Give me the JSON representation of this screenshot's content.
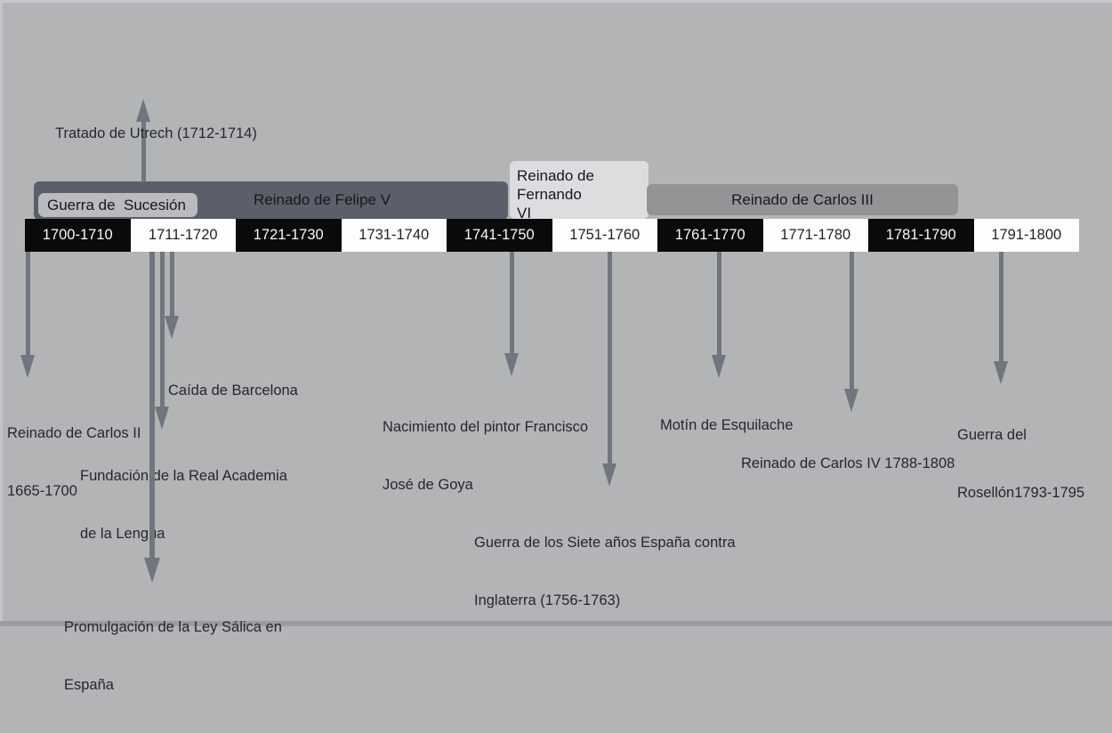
{
  "canvas": {
    "background": "#b3b4b6",
    "top_edge_color": "#c7c9cc",
    "bottom_edge_color": "#9b9ca0",
    "left_edge_color": "#c2c4c7",
    "text_color": "#26272b",
    "arrow_color": "#71757d"
  },
  "reigns": {
    "felipe_v": {
      "label": "Reinado de Felipe V",
      "color": "#5a5f6a"
    },
    "guerra_sucesion": {
      "label": "Guerra de  Sucesión",
      "color": "#babbbe"
    },
    "fernando_vi": {
      "lines": [
        "Reinado de Fernando",
        "VI"
      ],
      "color": "#dcdddf"
    },
    "carlos_iii": {
      "label": "Reinado de Carlos III",
      "color": "#949496"
    }
  },
  "timeline": {
    "decades": [
      "1700-1710",
      "1711-1720",
      "1721-1730",
      "1731-1740",
      "1741-1750",
      "1751-1760",
      "1761-1770",
      "1771-1780",
      "1781-1790",
      "1791-1800"
    ],
    "dark_cell_color": "#0a0a0b",
    "light_cell_color": "#fdfdfd"
  },
  "events": [
    {
      "id": "tratado-utrech",
      "direction": "up",
      "lines": [
        "Tratado de Utrech (1712-1714)"
      ]
    },
    {
      "id": "reinado-carlos-ii",
      "direction": "down",
      "lines": [
        "Reinado de Carlos II",
        "1665-1700"
      ]
    },
    {
      "id": "caida-barcelona",
      "direction": "down",
      "lines": [
        "Caída de Barcelona"
      ]
    },
    {
      "id": "fundacion-real-academia",
      "direction": "down",
      "lines": [
        "Fundación de la Real Academia",
        "de la Lengua"
      ]
    },
    {
      "id": "ley-salica",
      "direction": "down",
      "lines": [
        "Promulgación de la Ley Sálica en",
        "España"
      ]
    },
    {
      "id": "nacimiento-goya",
      "direction": "down",
      "lines": [
        "Nacimiento del pintor Francisco",
        "José de Goya"
      ]
    },
    {
      "id": "guerra-siete-anos",
      "direction": "down",
      "lines": [
        "Guerra de los Siete años España contra",
        "Inglaterra (1756-1763)"
      ]
    },
    {
      "id": "motin-esquilache",
      "direction": "down",
      "lines": [
        "Motín de Esquilache"
      ]
    },
    {
      "id": "reinado-carlos-iv",
      "direction": "down",
      "lines": [
        "Reinado de Carlos IV 1788-1808"
      ]
    },
    {
      "id": "guerra-rosellon",
      "direction": "down",
      "lines": [
        "Guerra del",
        "Rosellón1793-1795"
      ]
    }
  ]
}
